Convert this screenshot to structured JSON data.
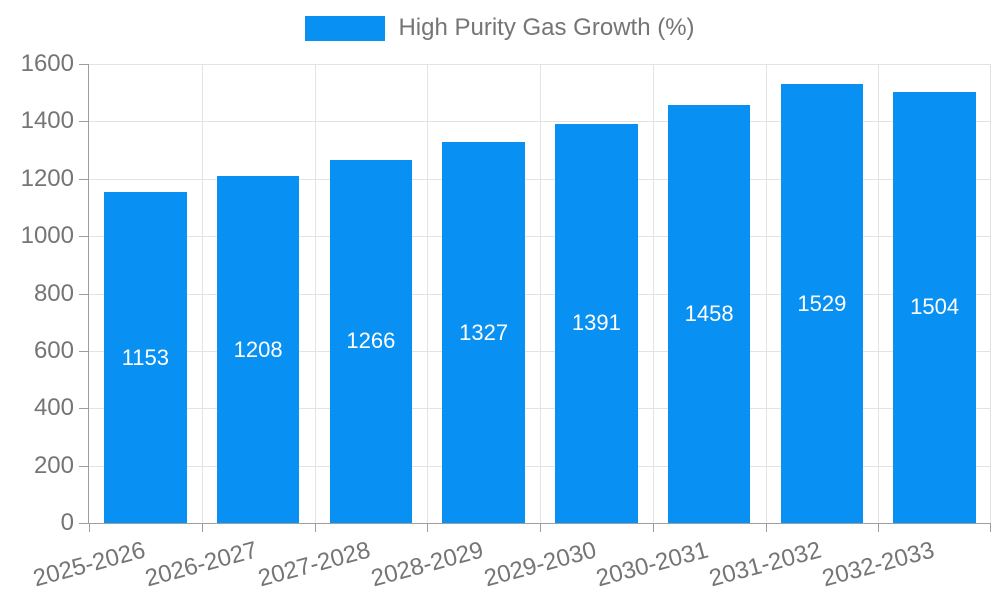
{
  "chart_data": {
    "type": "bar",
    "title": "High Purity Gas Growth (%)",
    "categories": [
      "2025-2026",
      "2026-2027",
      "2027-2028",
      "2028-2029",
      "2029-2030",
      "2030-2031",
      "2031-2032",
      "2032-2033"
    ],
    "values": [
      1153,
      1208,
      1266,
      1327,
      1391,
      1458,
      1529,
      1504
    ],
    "series": [
      {
        "name": "High Purity Gas Growth (%)",
        "values": [
          1153,
          1208,
          1266,
          1327,
          1391,
          1458,
          1529,
          1504
        ]
      }
    ],
    "xlabel": "",
    "ylabel": "",
    "ylim": [
      0,
      1600
    ],
    "yticks": [
      0,
      200,
      400,
      600,
      800,
      1000,
      1200,
      1400,
      1600
    ],
    "grid": true,
    "legend_position": "top-center",
    "bar_labels_inside": true,
    "colors": {
      "bar": "#0890F2",
      "bar_label": "#ffffff",
      "axis_text": "#757575",
      "axis_line": "#9e9e9e",
      "gridline": "#e3e3e3",
      "background": "#ffffff"
    }
  }
}
